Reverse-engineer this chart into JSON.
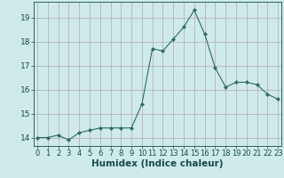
{
  "x": [
    0,
    1,
    2,
    3,
    4,
    5,
    6,
    7,
    8,
    9,
    10,
    11,
    12,
    13,
    14,
    15,
    16,
    17,
    18,
    19,
    20,
    21,
    22,
    23
  ],
  "y": [
    14.0,
    14.0,
    14.1,
    13.9,
    14.2,
    14.3,
    14.4,
    14.4,
    14.4,
    14.4,
    15.4,
    17.7,
    17.6,
    18.1,
    18.6,
    19.3,
    18.3,
    16.9,
    16.1,
    16.3,
    16.3,
    16.2,
    15.8,
    15.6
  ],
  "line_color": "#2e6b62",
  "marker": "D",
  "marker_size": 2.2,
  "bg_color": "#ceeaea",
  "grid_color": "#b8a8a8",
  "xlabel": "Humidex (Indice chaleur)",
  "xlabel_fontsize": 7.5,
  "yticks": [
    14,
    15,
    16,
    17,
    18,
    19
  ],
  "xticks": [
    0,
    1,
    2,
    3,
    4,
    5,
    6,
    7,
    8,
    9,
    10,
    11,
    12,
    13,
    14,
    15,
    16,
    17,
    18,
    19,
    20,
    21,
    22,
    23
  ],
  "xlim": [
    -0.3,
    23.3
  ],
  "ylim": [
    13.65,
    19.65
  ],
  "tick_color": "#1a4a4a",
  "tick_fontsize": 6.0
}
